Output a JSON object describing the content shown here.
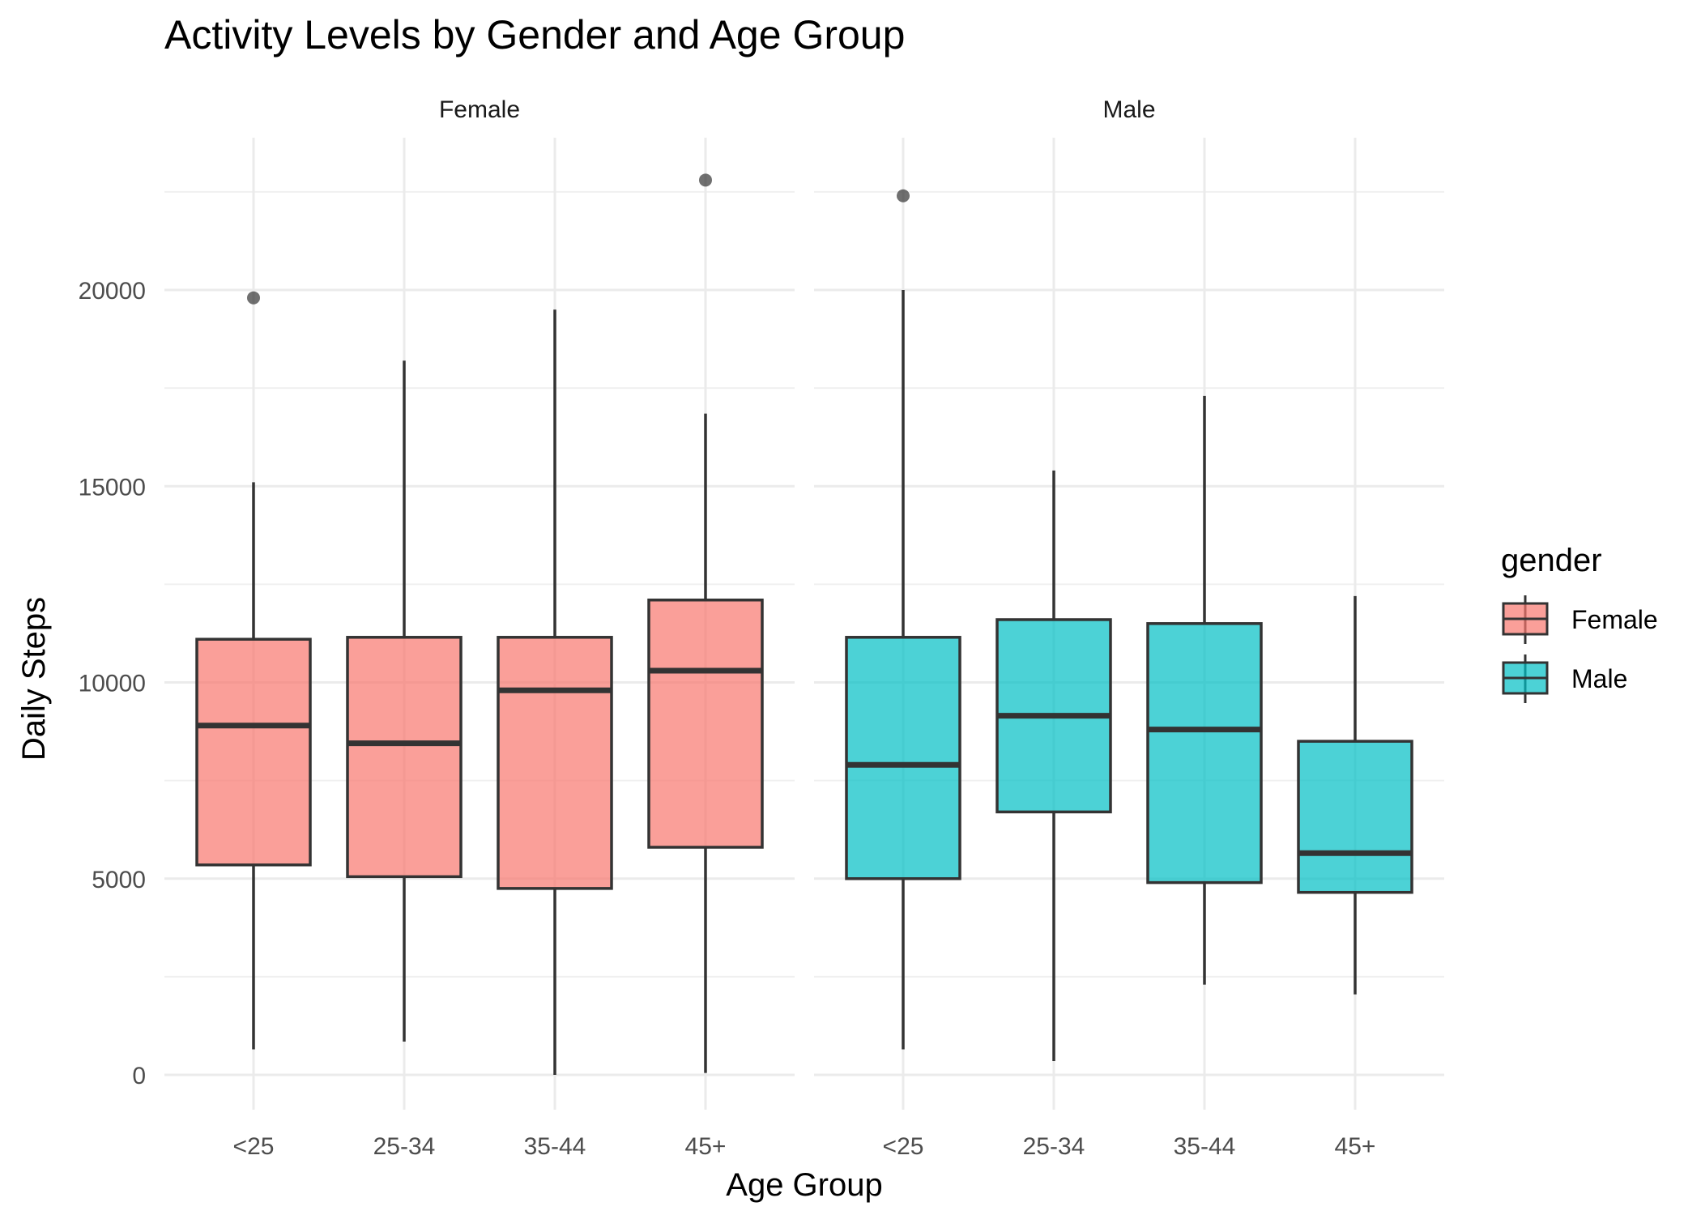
{
  "chart_data": {
    "type": "boxplot",
    "title": "Activity Levels by Gender and Age Group",
    "xlabel": "Age Group",
    "ylabel": "Daily Steps",
    "ylim": [
      -1000,
      23500
    ],
    "yticks": [
      0,
      5000,
      10000,
      15000,
      20000
    ],
    "grid": true,
    "categories": [
      "<25",
      "25-34",
      "35-44",
      "45+"
    ],
    "legend": {
      "title": "gender",
      "placement": "right",
      "entries": [
        {
          "label": "Female",
          "color": "#F8766D"
        },
        {
          "label": "Male",
          "color": "#00BFC4"
        }
      ]
    },
    "facets": [
      {
        "label": "Female",
        "color": "#F8766D",
        "boxes": [
          {
            "category": "<25",
            "min": 650,
            "q1": 5350,
            "median": 8900,
            "q3": 11100,
            "max": 15100,
            "outliers": [
              19800
            ]
          },
          {
            "category": "25-34",
            "min": 850,
            "q1": 5050,
            "median": 8450,
            "q3": 11150,
            "max": 18200,
            "outliers": []
          },
          {
            "category": "35-44",
            "min": 0,
            "q1": 4750,
            "median": 9800,
            "q3": 11150,
            "max": 19500,
            "outliers": []
          },
          {
            "category": "45+",
            "min": 50,
            "q1": 5800,
            "median": 10300,
            "q3": 12100,
            "max": 16850,
            "outliers": [
              22800
            ]
          }
        ]
      },
      {
        "label": "Male",
        "color": "#00BFC4",
        "boxes": [
          {
            "category": "<25",
            "min": 650,
            "q1": 5000,
            "median": 7900,
            "q3": 11150,
            "max": 20000,
            "outliers": [
              22400
            ]
          },
          {
            "category": "25-34",
            "min": 350,
            "q1": 6700,
            "median": 9150,
            "q3": 11600,
            "max": 15400,
            "outliers": []
          },
          {
            "category": "35-44",
            "min": 2300,
            "q1": 4900,
            "median": 8800,
            "q3": 11500,
            "max": 17300,
            "outliers": []
          },
          {
            "category": "45+",
            "min": 2050,
            "q1": 4650,
            "median": 5650,
            "q3": 8500,
            "max": 12200,
            "outliers": []
          }
        ]
      }
    ]
  }
}
